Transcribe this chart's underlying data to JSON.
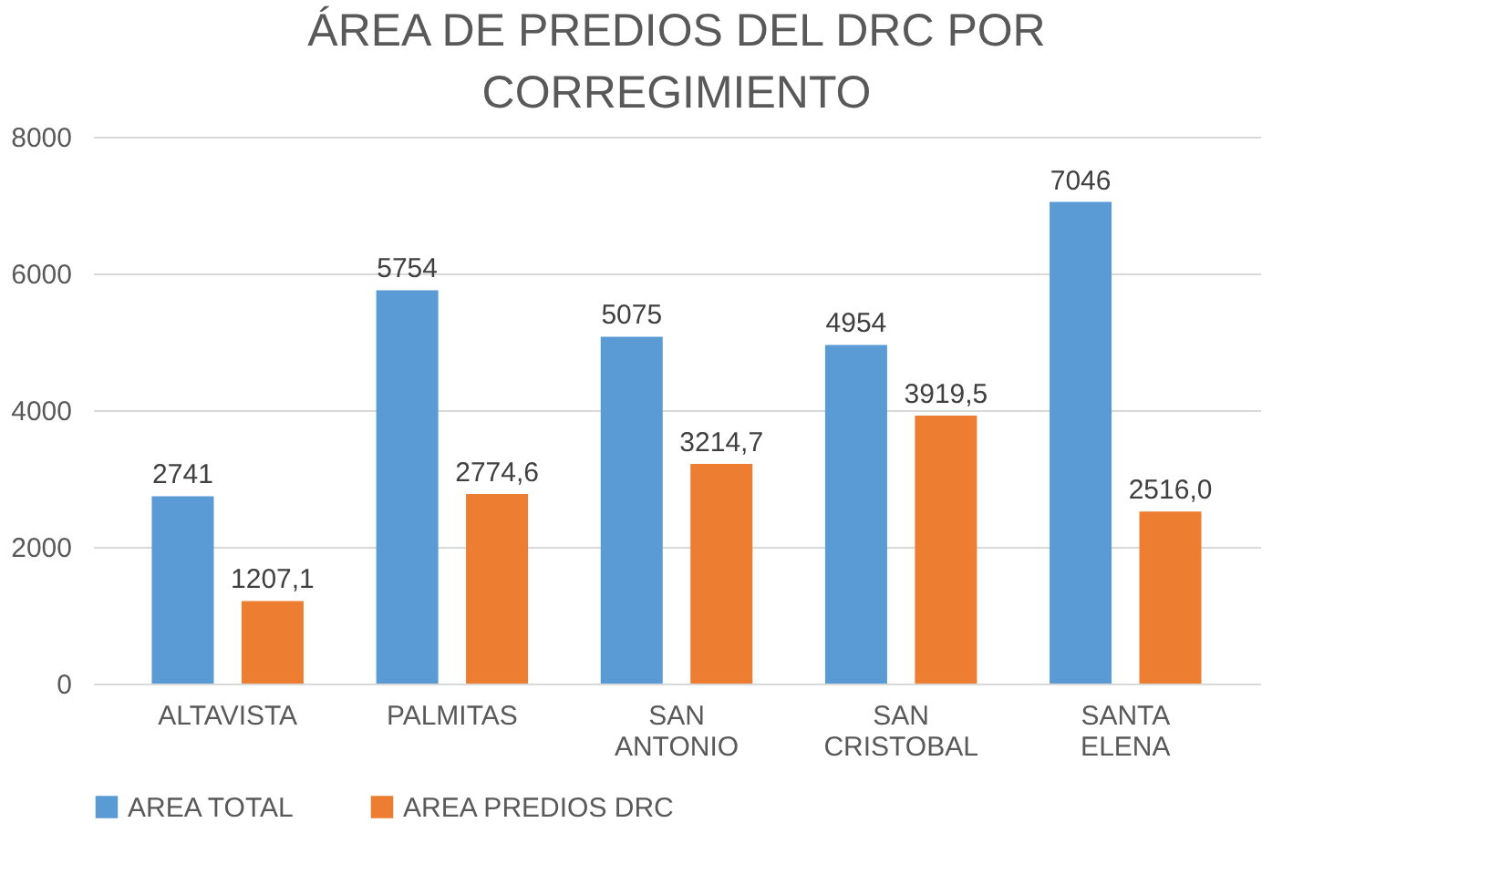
{
  "chart_data": {
    "type": "bar",
    "title": "ÁREA DE PREDIOS DEL DRC POR CORREGIMIENTO",
    "categories": [
      "ALTAVISTA",
      "PALMITAS",
      "SAN ANTONIO",
      "SAN CRISTOBAL",
      "SANTA ELENA"
    ],
    "series": [
      {
        "name": "AREA TOTAL",
        "color": "#5b9bd5",
        "values": [
          2741,
          5754,
          5075,
          4954,
          7046
        ],
        "value_labels": [
          "2741",
          "5754",
          "5075",
          "4954",
          "7046"
        ]
      },
      {
        "name": "AREA PREDIOS DRC",
        "color": "#ed7d31",
        "values": [
          1207.1,
          2774.6,
          3214.7,
          3919.5,
          2516.0
        ],
        "value_labels": [
          "1207,1",
          "2774,6",
          "3214,7",
          "3919,5",
          "2516,0"
        ]
      }
    ],
    "ylim": [
      0,
      8000
    ],
    "yticks": [
      0,
      2000,
      4000,
      6000,
      8000
    ],
    "grid": "y",
    "legend": "bottom"
  }
}
